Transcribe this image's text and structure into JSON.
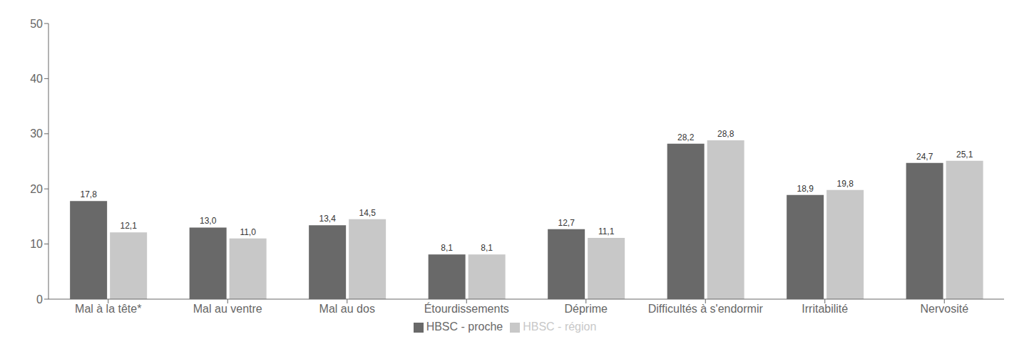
{
  "chart_data": {
    "type": "bar",
    "categories": [
      "Mal à la tête*",
      "Mal au ventre",
      "Mal au dos",
      "Étourdissements",
      "Déprime",
      "Difficultés à s'endormir",
      "Irritabilité",
      "Nervosité"
    ],
    "series": [
      {
        "name": "HBSC - proche",
        "color": "#696969",
        "values": [
          17.8,
          13.0,
          13.4,
          8.1,
          12.7,
          28.2,
          18.9,
          24.7
        ],
        "value_labels": [
          "17,8",
          "13,0",
          "13,4",
          "8,1",
          "12,7",
          "28,2",
          "18,9",
          "24,7"
        ]
      },
      {
        "name": "HBSC - région",
        "color": "#c8c8c8",
        "values": [
          12.1,
          11.0,
          14.5,
          8.1,
          11.1,
          28.8,
          19.8,
          25.1
        ],
        "value_labels": [
          "12,1",
          "11,0",
          "14,5",
          "8,1",
          "11,1",
          "28,8",
          "19,8",
          "25,1"
        ]
      }
    ],
    "ylim": [
      0,
      50
    ],
    "yticks": [
      0,
      10,
      20,
      30,
      40,
      50
    ],
    "data_labels": true,
    "grid": false,
    "legend": "bottom"
  }
}
